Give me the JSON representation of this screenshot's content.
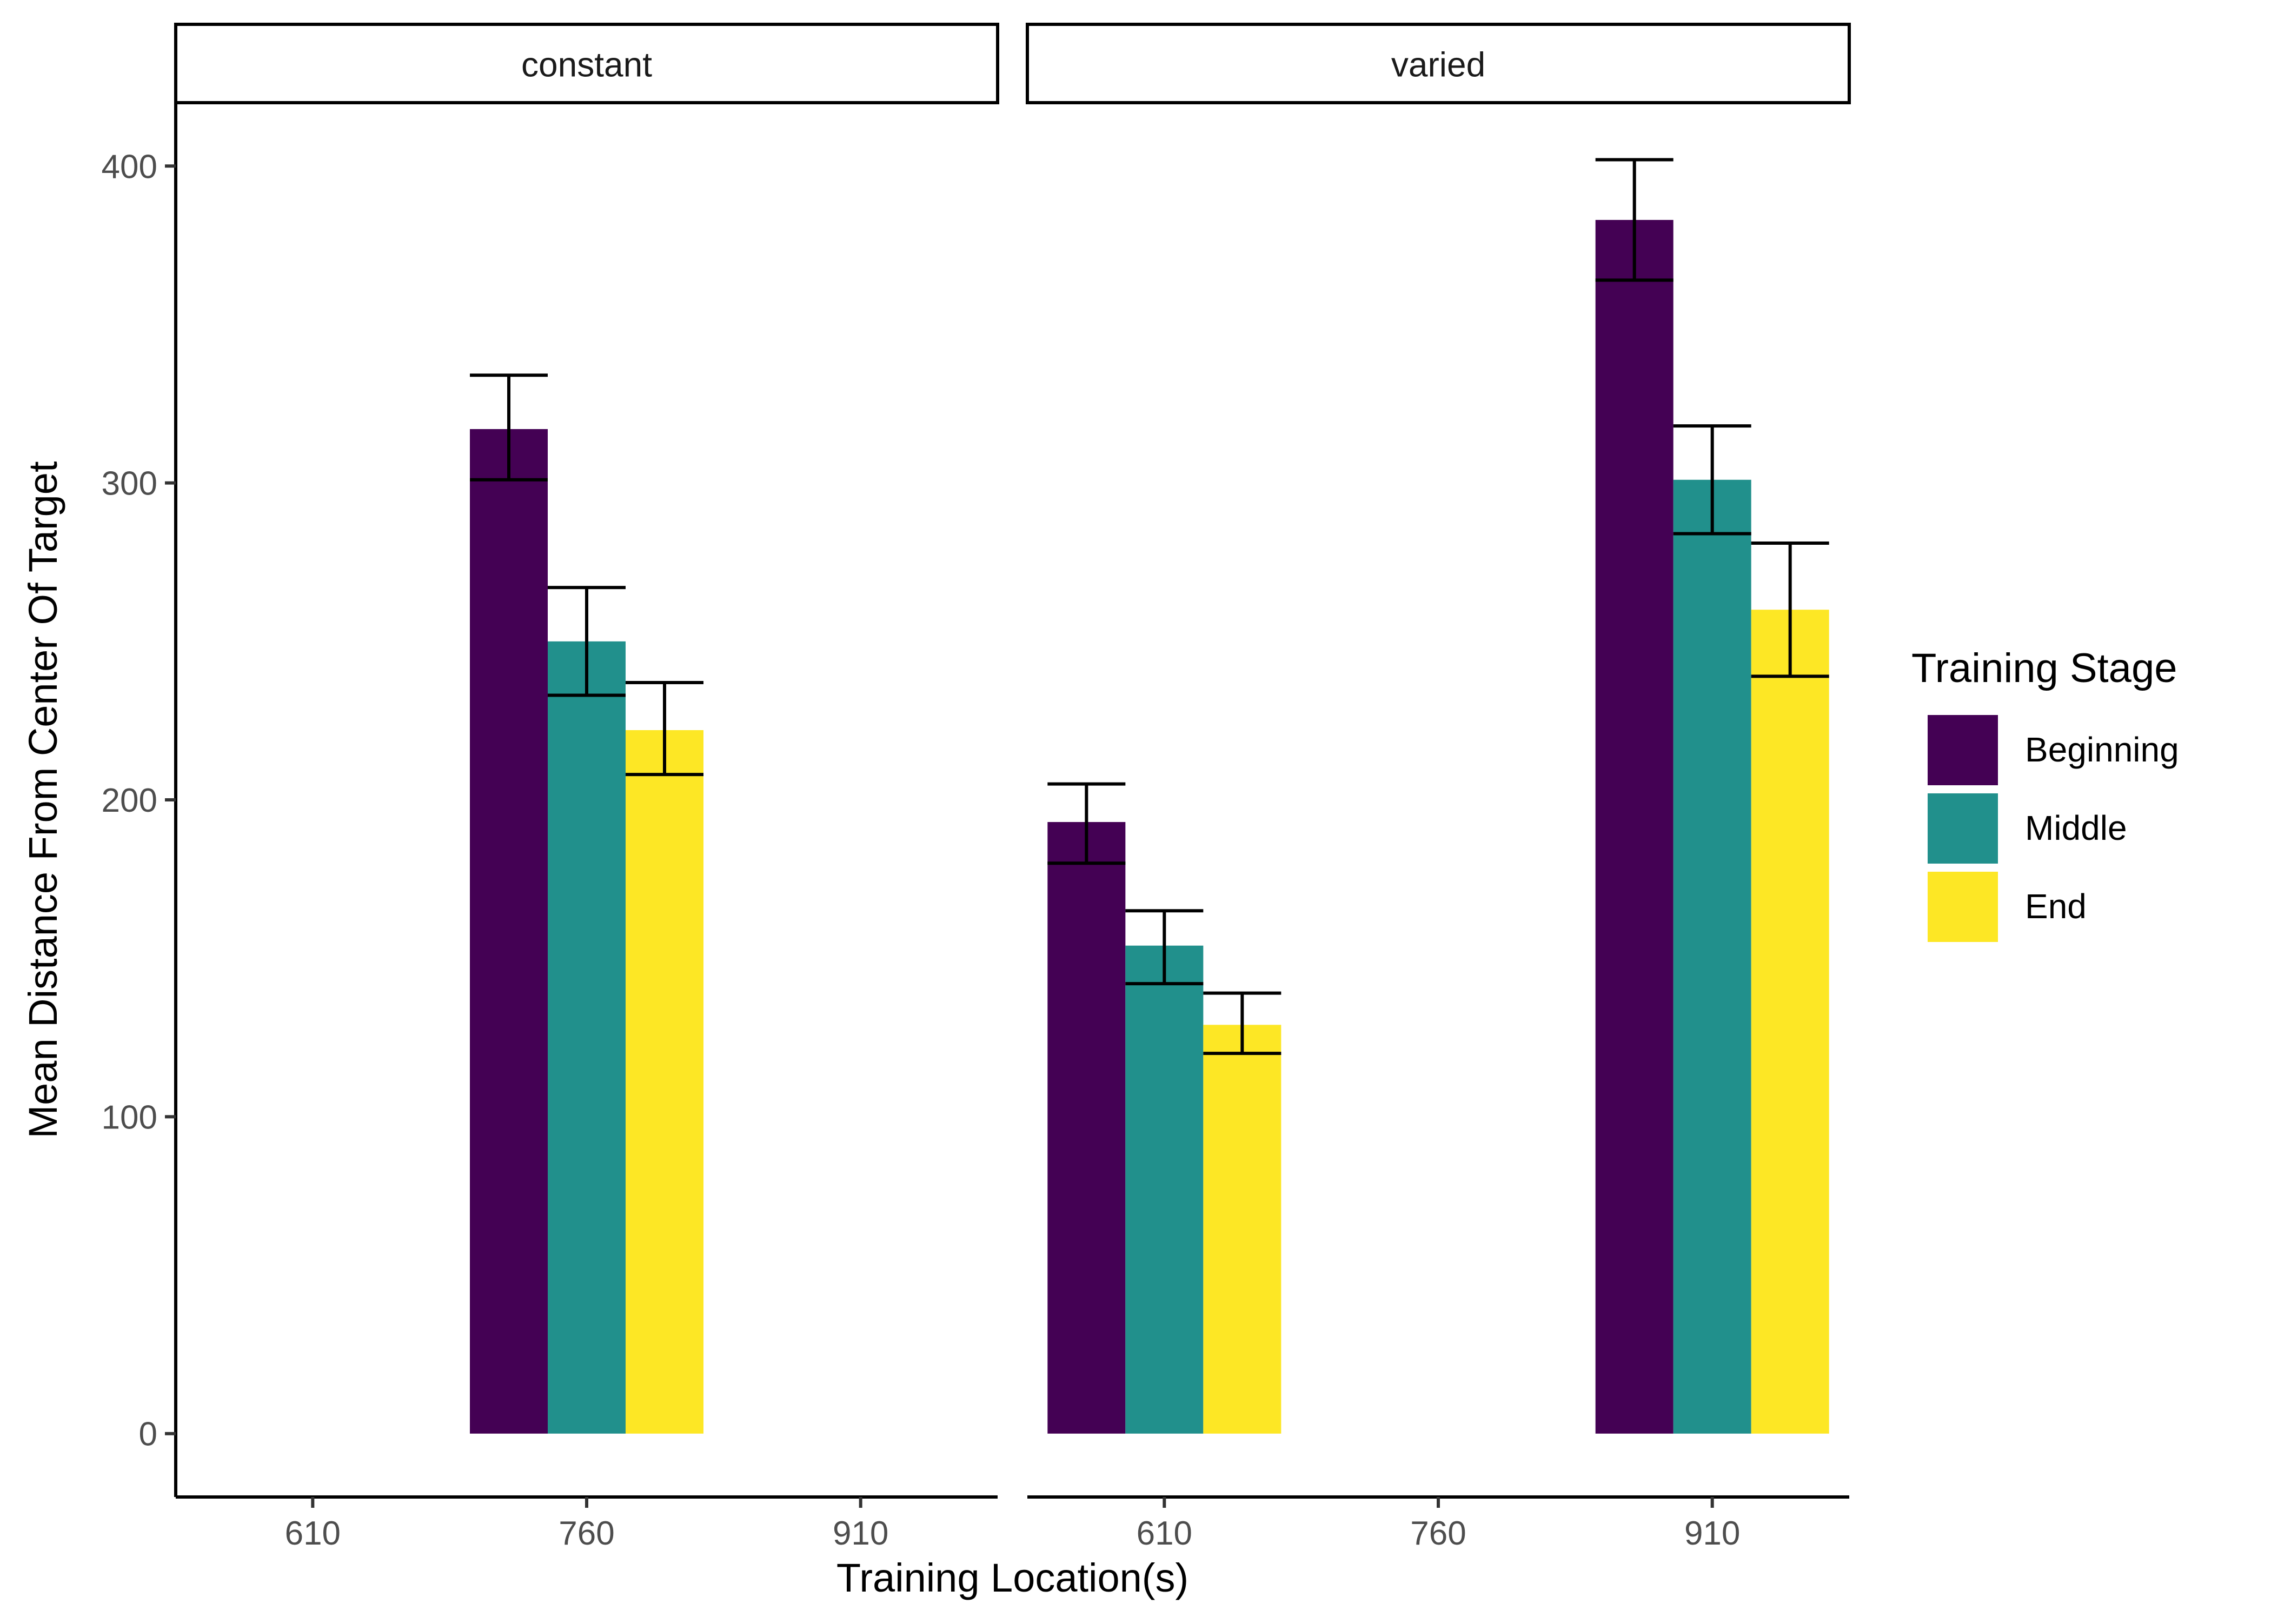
{
  "chart_data": {
    "type": "bar",
    "xlabel": "Training Location(s)",
    "ylabel": "Mean Distance From Center Of Target",
    "ylim": [
      -20,
      420
    ],
    "yticks": [
      0,
      100,
      200,
      300,
      400
    ],
    "x_categories": [
      "610",
      "760",
      "910"
    ],
    "legend": {
      "title": "Training Stage",
      "position": "right",
      "entries": [
        "Beginning",
        "Middle",
        "End"
      ]
    },
    "colors": {
      "Beginning": "#440154",
      "Middle": "#21908C",
      "End": "#FDE725"
    },
    "panels": [
      {
        "label": "constant",
        "groups": [
          {
            "location": "760",
            "bars": [
              {
                "stage": "Beginning",
                "value": 317,
                "err_low": 301,
                "err_high": 334
              },
              {
                "stage": "Middle",
                "value": 250,
                "err_low": 233,
                "err_high": 267
              },
              {
                "stage": "End",
                "value": 222,
                "err_low": 208,
                "err_high": 237
              }
            ]
          }
        ]
      },
      {
        "label": "varied",
        "groups": [
          {
            "location": "610",
            "bars": [
              {
                "stage": "Beginning",
                "value": 193,
                "err_low": 180,
                "err_high": 205
              },
              {
                "stage": "Middle",
                "value": 154,
                "err_low": 142,
                "err_high": 165
              },
              {
                "stage": "End",
                "value": 129,
                "err_low": 120,
                "err_high": 139
              }
            ]
          },
          {
            "location": "910",
            "bars": [
              {
                "stage": "Beginning",
                "value": 383,
                "err_low": 364,
                "err_high": 402
              },
              {
                "stage": "Middle",
                "value": 301,
                "err_low": 284,
                "err_high": 318
              },
              {
                "stage": "End",
                "value": 260,
                "err_low": 239,
                "err_high": 281
              }
            ]
          }
        ]
      }
    ]
  }
}
